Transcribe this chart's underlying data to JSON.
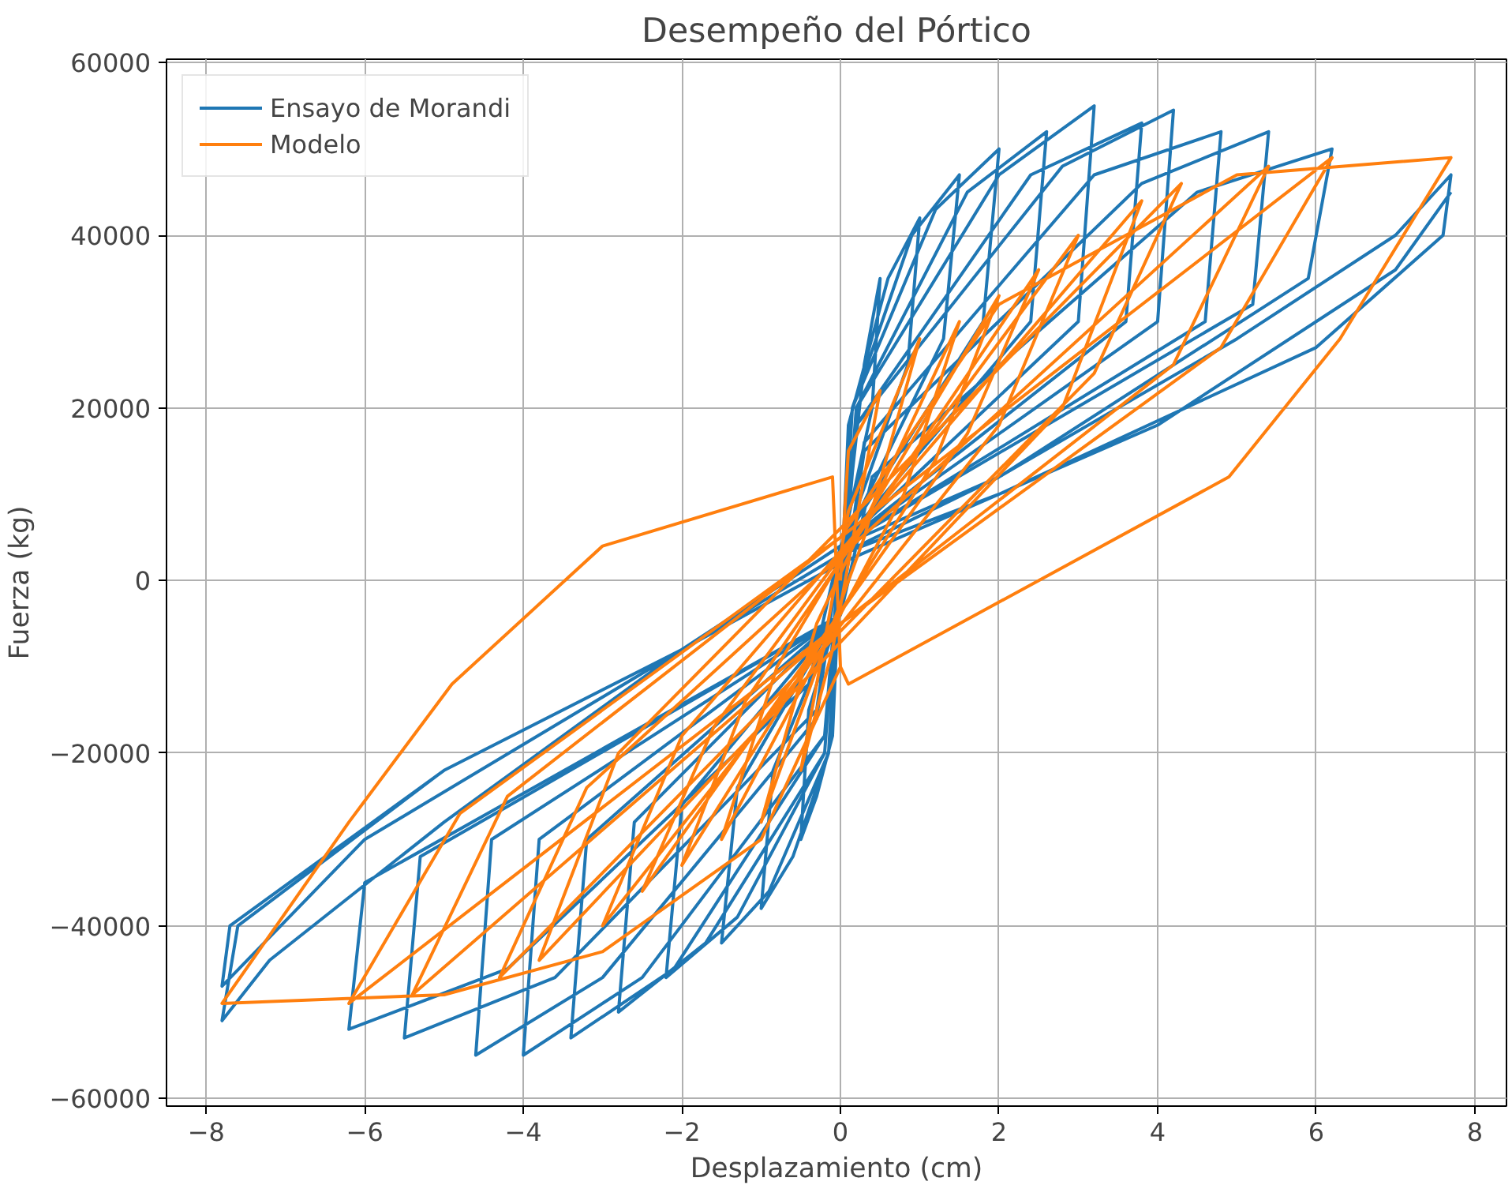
{
  "chart_data": {
    "type": "line",
    "title": "Desempeño del Pórtico",
    "xlabel": "Desplazamiento (cm)",
    "ylabel": "Fuerza (kg)",
    "xlim": [
      -8.5,
      8.4
    ],
    "ylim": [
      -60900,
      60400
    ],
    "xticks": [
      {
        "value": -8,
        "label": "−8"
      },
      {
        "value": -6,
        "label": "−6"
      },
      {
        "value": -4,
        "label": "−4"
      },
      {
        "value": -2,
        "label": "−2"
      },
      0,
      2,
      4,
      6,
      8
    ],
    "yticks": [
      {
        "value": -60000,
        "label": "−60000"
      },
      {
        "value": -40000,
        "label": "−40000"
      },
      {
        "value": -20000,
        "label": "−20000"
      },
      0,
      20000,
      40000,
      60000
    ],
    "grid": true,
    "legend": "top left",
    "marker": "none",
    "line_style": "solid",
    "series": [
      {
        "name": "Ensayo de Morandi",
        "color": "#1f77b4",
        "x": [
          0,
          0.3,
          0.5,
          0.4,
          0,
          -0.1,
          -0.3,
          -0.5,
          -0.4,
          0,
          0.1,
          0.6,
          1.0,
          0.85,
          0,
          -0.15,
          -0.6,
          -1.0,
          -0.85,
          0,
          0.15,
          0.9,
          1.5,
          1.3,
          0,
          -0.15,
          -0.9,
          -1.5,
          -1.3,
          0,
          0.15,
          1.2,
          2.0,
          1.8,
          0,
          -0.2,
          -1.3,
          -2.2,
          -2.0,
          0,
          0.2,
          1.6,
          2.6,
          2.4,
          0,
          -0.2,
          -1.7,
          -2.8,
          -2.6,
          0,
          0.2,
          2.0,
          3.2,
          3.0,
          0,
          -0.2,
          -2.1,
          -3.4,
          -3.2,
          0,
          0.2,
          2.4,
          3.8,
          3.6,
          0,
          -0.2,
          -2.5,
          -4.0,
          -3.8,
          0,
          0.2,
          2.8,
          4.2,
          4.0,
          0,
          -0.3,
          -3.0,
          -4.6,
          -4.4,
          0,
          0.3,
          3.2,
          4.8,
          4.6,
          0,
          -0.3,
          -3.6,
          -5.5,
          -5.3,
          0,
          0.3,
          3.8,
          5.4,
          5.2,
          0,
          -0.4,
          -4.2,
          -6.2,
          -6.0,
          0,
          0.4,
          4.5,
          6.2,
          5.9,
          2,
          0,
          -2,
          -5,
          -7.2,
          -7.8,
          -7.6,
          -5,
          -2,
          0,
          2,
          5,
          7.0,
          7.7,
          7.6,
          6,
          2,
          0,
          -2,
          -6,
          -7.8,
          -7.7,
          -5,
          -2,
          0,
          4,
          7,
          7.7
        ],
        "values": [
          0,
          25000,
          35000,
          20000,
          3000,
          -18000,
          -25000,
          -30000,
          -15000,
          -3000,
          18000,
          35000,
          42000,
          25000,
          3000,
          -20000,
          -32000,
          -38000,
          -22000,
          -3000,
          20000,
          40000,
          47000,
          28000,
          3500,
          -20000,
          -36000,
          -42000,
          -24000,
          -3500,
          20000,
          43000,
          50000,
          30000,
          4000,
          -20000,
          -39000,
          -46000,
          -26000,
          -4000,
          20000,
          45000,
          52000,
          30000,
          4000,
          -20000,
          -42000,
          -50000,
          -28000,
          -4000,
          20000,
          47000,
          55000,
          30000,
          4000,
          -18000,
          -45000,
          -53000,
          -30000,
          -4000,
          18000,
          47000,
          53000,
          30000,
          4000,
          -18000,
          -46000,
          -55000,
          -30000,
          -4000,
          18000,
          48000,
          54500,
          30000,
          4000,
          -16000,
          -46000,
          -55000,
          -30000,
          -4000,
          16000,
          47000,
          52000,
          30000,
          4000,
          -15000,
          -46000,
          -53000,
          -32000,
          -4000,
          15000,
          46000,
          52000,
          32000,
          4000,
          -12000,
          -45000,
          -52000,
          -35000,
          -4000,
          12000,
          45000,
          50000,
          35000,
          12000,
          4000,
          -8000,
          -28000,
          -44000,
          -51000,
          -40000,
          -22000,
          -8000,
          3000,
          12000,
          28000,
          40000,
          47000,
          40000,
          27000,
          10000,
          3000,
          -8000,
          -30000,
          -47000,
          -40000,
          -22000,
          -8000,
          2000,
          18000,
          36000,
          45000
        ]
      },
      {
        "name": "Modelo",
        "color": "#ff7f0e",
        "x": [
          0,
          0.1,
          0.5,
          -0.1,
          -0.5,
          0.1,
          1,
          0.3,
          -1,
          -0.3,
          1.5,
          0.8,
          -1.5,
          -0.8,
          2,
          1.2,
          -2,
          -1.2,
          2.5,
          1.6,
          -2.5,
          -1.6,
          3,
          2,
          -3,
          -2,
          3.8,
          2.8,
          -3.8,
          -2.8,
          4.3,
          3.2,
          -4.3,
          -3.2,
          5.4,
          4.2,
          0,
          -5.4,
          -4.2,
          0,
          6.2,
          4.8,
          0,
          -6.2,
          -4.8,
          0,
          2,
          5,
          7.7,
          6.3,
          4.9,
          0.1,
          0,
          -0.1,
          -3,
          -4.9,
          -6.2,
          -7.8,
          -5,
          -3,
          -1,
          0
        ],
        "values": [
          0,
          15000,
          22000,
          -8000,
          -22000,
          8000,
          28000,
          5000,
          -28000,
          -5000,
          30000,
          10000,
          -30000,
          -10000,
          33000,
          14000,
          -33000,
          -14000,
          36000,
          17000,
          -36000,
          -17000,
          40000,
          18000,
          -40000,
          -18000,
          44000,
          20000,
          -44000,
          -20000,
          46000,
          24000,
          -46000,
          -24000,
          48000,
          25000,
          -5000,
          -48000,
          -25000,
          5000,
          49000,
          27000,
          -5000,
          -49000,
          -27000,
          5000,
          32000,
          47000,
          49000,
          28000,
          12000,
          -12000,
          -10000,
          12000,
          4000,
          -12000,
          -28000,
          -49000,
          -48000,
          -43000,
          -30000,
          -10000
        ]
      }
    ]
  }
}
